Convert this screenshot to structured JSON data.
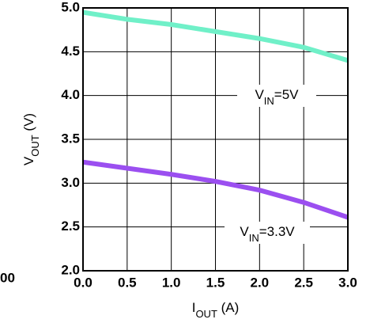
{
  "edge_text": "00",
  "chart_data": {
    "type": "line",
    "xlabel": [
      "I",
      "OUT",
      " (A)"
    ],
    "ylabel": [
      "V",
      "OUT",
      " (V)"
    ],
    "x": [
      0,
      0.5,
      1.0,
      1.5,
      2.0,
      2.5,
      3.0
    ],
    "series": [
      {
        "name": [
          "V",
          "IN",
          "=5V"
        ],
        "color": "#70f0c8",
        "values": [
          4.95,
          4.87,
          4.81,
          4.73,
          4.65,
          4.55,
          4.4
        ]
      },
      {
        "name": [
          "V",
          "IN",
          "=3.3V"
        ],
        "color": "#9b4ff0",
        "values": [
          3.24,
          3.17,
          3.1,
          3.02,
          2.92,
          2.78,
          2.61
        ]
      }
    ],
    "xlim": [
      0,
      3.0
    ],
    "xticks": [
      {
        "value": 0,
        "label": "0.0"
      },
      0.5,
      {
        "value": 1,
        "label": "1.0"
      },
      1.5,
      {
        "value": 2,
        "label": "2.0"
      },
      2.5,
      {
        "value": 3,
        "label": "3.0"
      }
    ],
    "ylim": [
      2.0,
      5.0
    ],
    "yticks": [
      {
        "value": 2,
        "label": "2.0"
      },
      2.5,
      {
        "value": 3,
        "label": "3.0"
      },
      3.5,
      {
        "value": 4,
        "label": "4.0"
      },
      4.5,
      {
        "value": 5,
        "label": "5.0"
      }
    ],
    "grid": true
  }
}
